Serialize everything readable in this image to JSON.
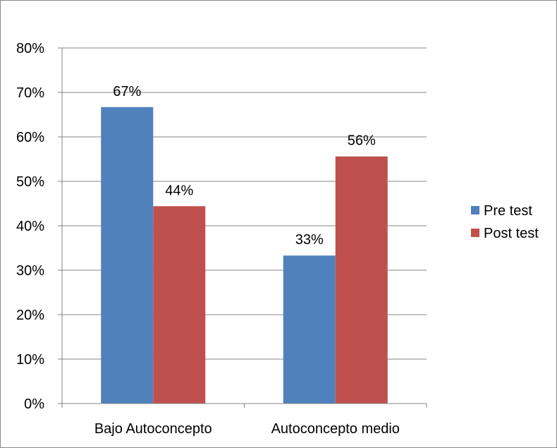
{
  "chart_data": {
    "type": "bar",
    "title": "",
    "xlabel": "",
    "ylabel": "",
    "categories": [
      "Bajo Autoconcepto",
      "Autoconcepto medio"
    ],
    "series": [
      {
        "name": "Pre test",
        "values": [
          67,
          33
        ],
        "labels": [
          "67%",
          "33%"
        ],
        "color": "#4F81BD"
      },
      {
        "name": "Post test",
        "values": [
          44,
          56
        ],
        "labels": [
          "44%",
          "56%"
        ],
        "color": "#C0504D"
      }
    ],
    "bar_heights_exact": [
      [
        66.7,
        33.3
      ],
      [
        44.4,
        55.6
      ]
    ],
    "ylim": [
      0,
      80
    ],
    "yticks": [
      "0%",
      "10%",
      "20%",
      "30%",
      "40%",
      "50%",
      "60%",
      "70%",
      "80%"
    ],
    "grid": true,
    "legend_position": "right"
  }
}
